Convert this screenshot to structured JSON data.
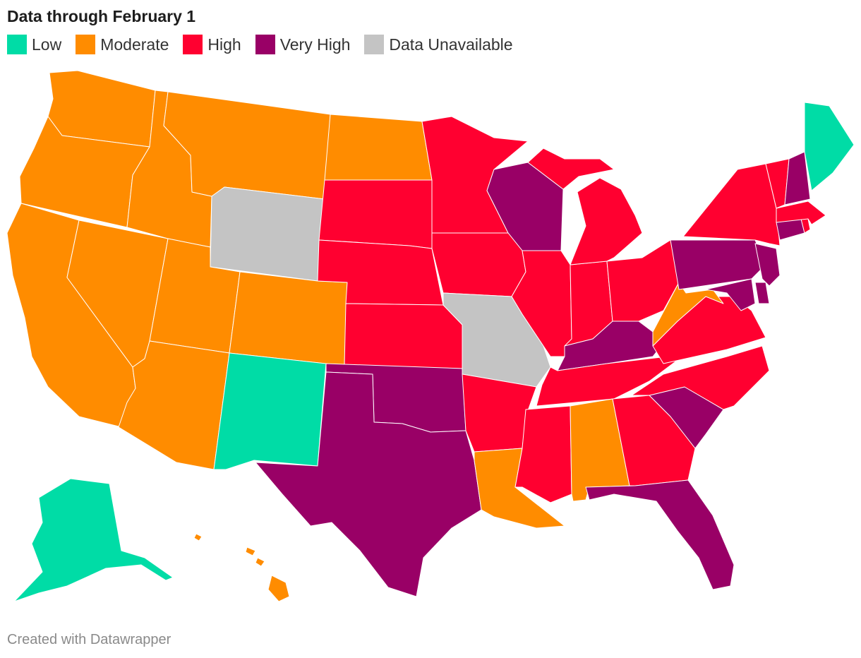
{
  "title": "Data through February 1",
  "legend": [
    {
      "key": "low",
      "label": "Low",
      "color": "#00DCA6"
    },
    {
      "key": "moderate",
      "label": "Moderate",
      "color": "#FF8C00"
    },
    {
      "key": "high",
      "label": "High",
      "color": "#FF0030"
    },
    {
      "key": "very_high",
      "label": "Very High",
      "color": "#990066"
    },
    {
      "key": "unavailable",
      "label": "Data Unavailable",
      "color": "#C4C4C4"
    }
  ],
  "states": {
    "AK": "low",
    "ME": "low",
    "NM": "low",
    "WA": "moderate",
    "OR": "moderate",
    "CA": "moderate",
    "NV": "moderate",
    "ID": "moderate",
    "MT": "moderate",
    "UT": "moderate",
    "AZ": "moderate",
    "CO": "moderate",
    "ND": "moderate",
    "LA": "moderate",
    "AL": "moderate",
    "WV": "moderate",
    "HI": "moderate",
    "SD": "high",
    "NE": "high",
    "KS": "high",
    "MN": "high",
    "IA": "high",
    "AR": "high",
    "MS": "high",
    "IL": "high",
    "IN": "high",
    "MI": "high",
    "OH": "high",
    "TN": "high",
    "GA": "high",
    "NC": "high",
    "VA": "high",
    "NY": "high",
    "VT": "high",
    "MA": "high",
    "RI": "high",
    "TX": "very_high",
    "OK": "very_high",
    "WI": "very_high",
    "KY": "very_high",
    "FL": "very_high",
    "SC": "very_high",
    "PA": "very_high",
    "NJ": "very_high",
    "MD": "very_high",
    "DE": "very_high",
    "CT": "very_high",
    "NH": "very_high",
    "WY": "unavailable",
    "MO": "unavailable"
  },
  "footer": "Created with Datawrapper"
}
